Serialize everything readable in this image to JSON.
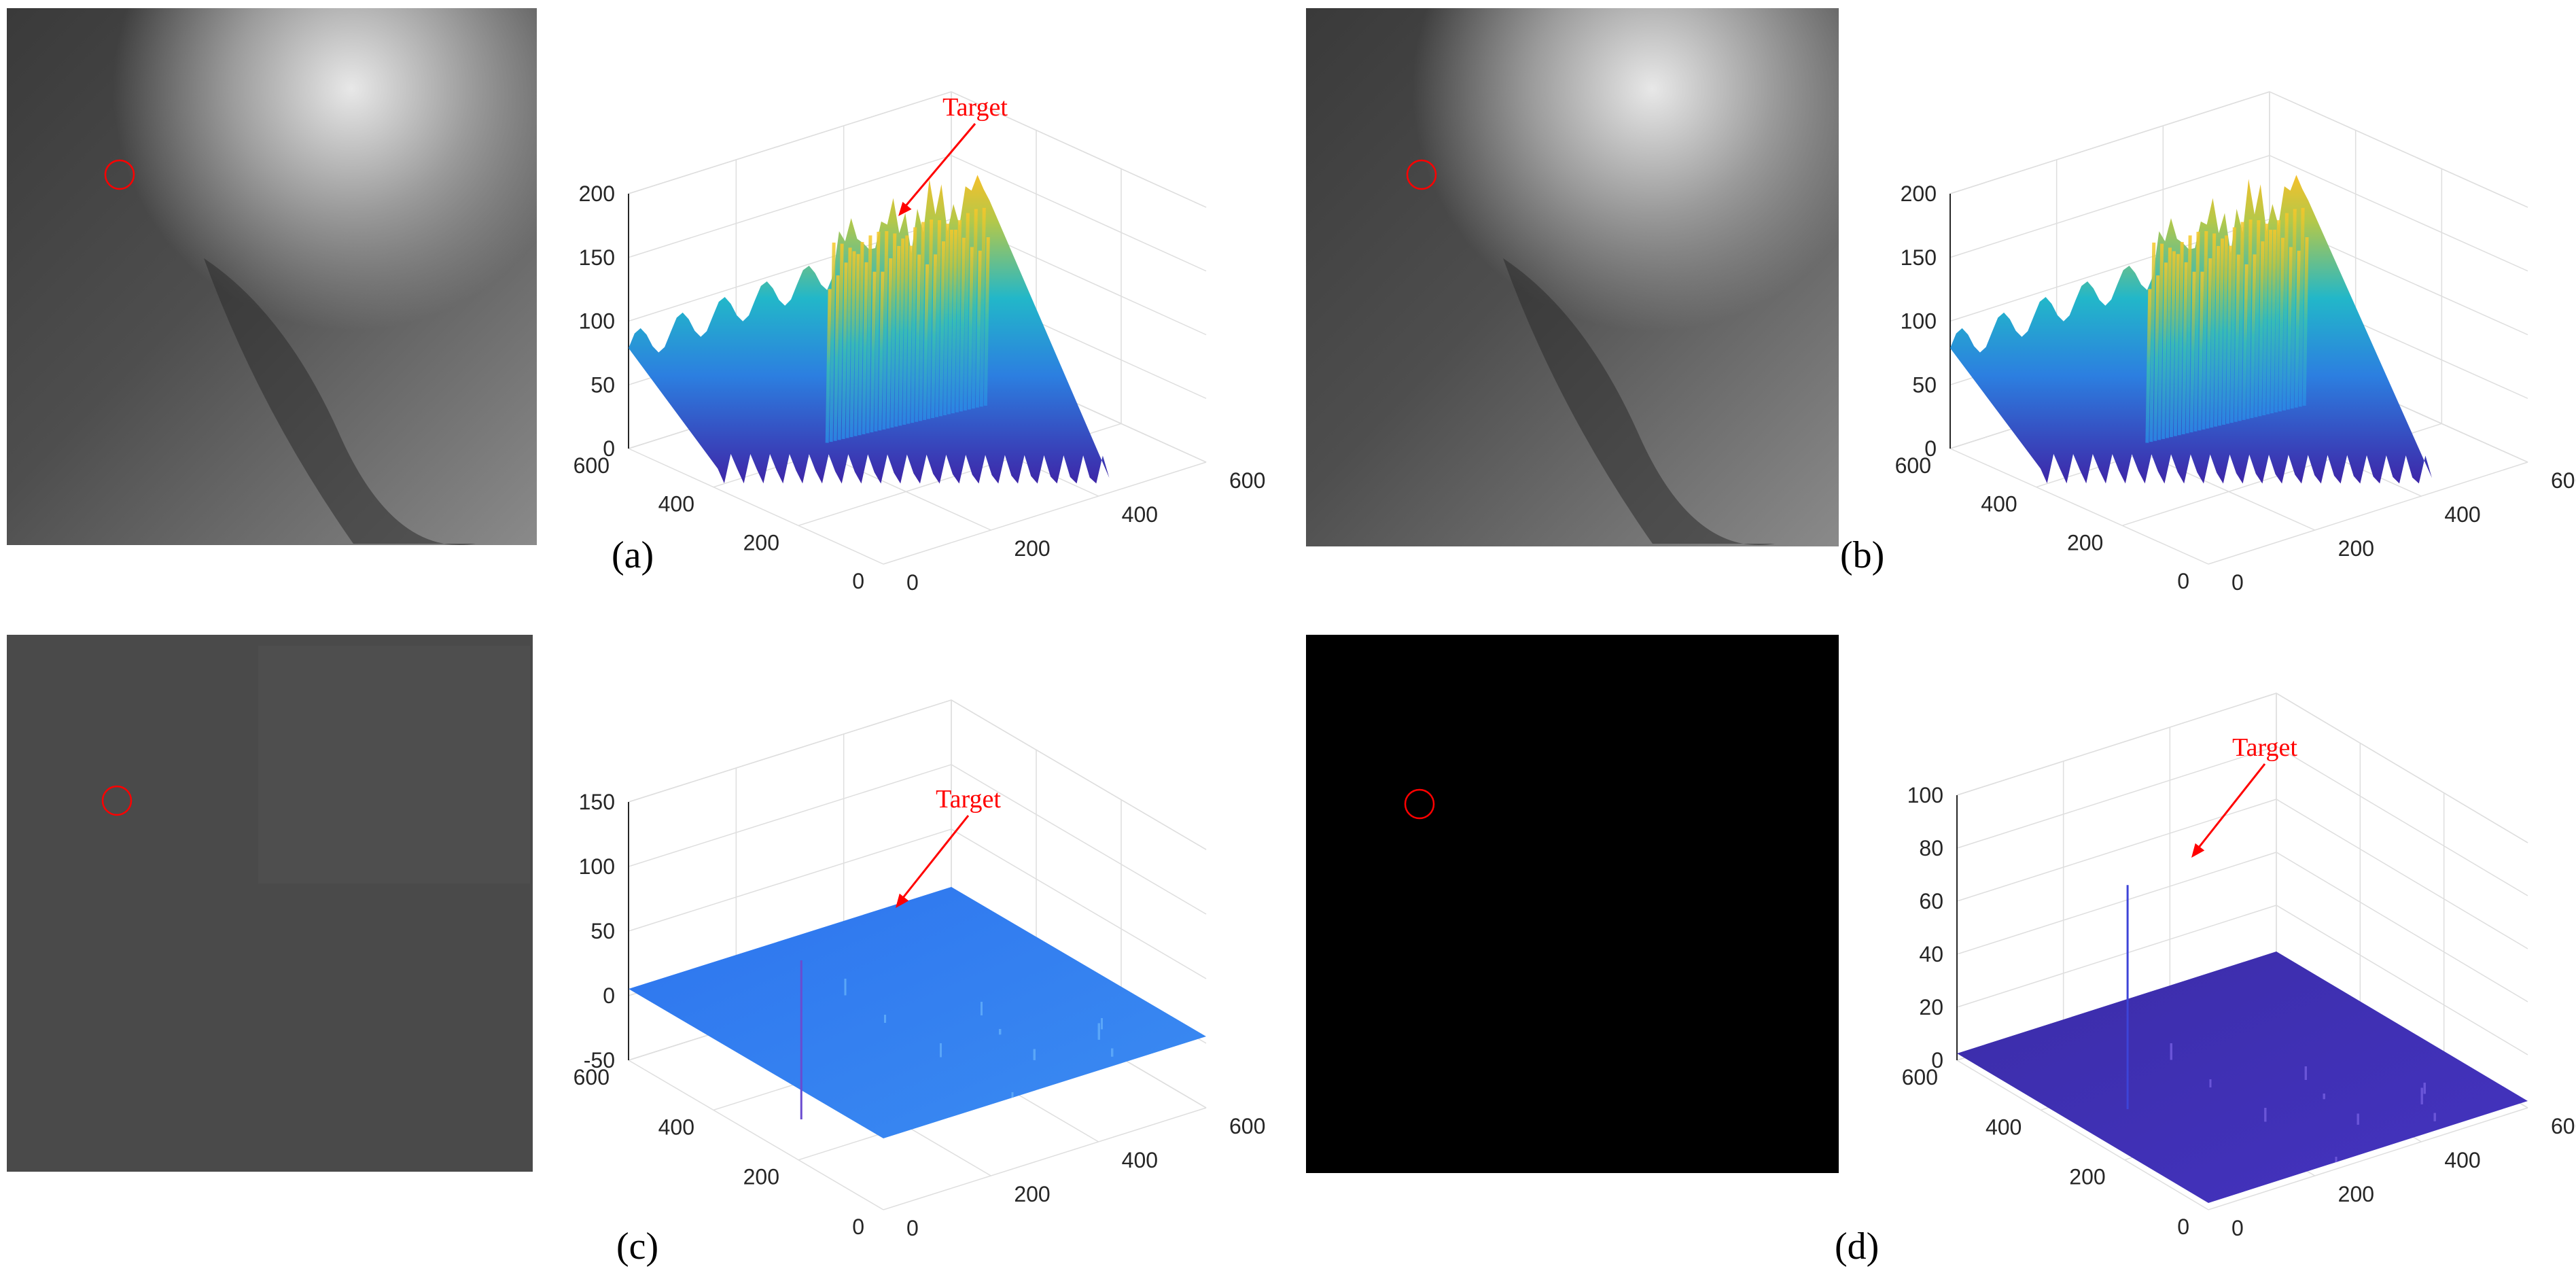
{
  "figure": {
    "annotation_text": "Target",
    "colors": {
      "annotation": "#ff0000",
      "grid": "#dedede",
      "axis": "#262626",
      "surface_low": "#3e26a8",
      "surface_mid": "#1fa4d6",
      "surface_high": "#f5c02a"
    }
  },
  "chart_data": [
    {
      "panel": "a",
      "type": "surface3d",
      "label": "(a)",
      "image": "grayscale infrared scene with a red circle marking the target",
      "axes": {
        "x": {
          "range": [
            0,
            600
          ],
          "ticks": [
            "0",
            "200",
            "400",
            "600"
          ]
        },
        "y": {
          "range": [
            0,
            600
          ],
          "ticks": [
            "0",
            "200",
            "400",
            "600"
          ]
        },
        "z": {
          "range": [
            0,
            200
          ],
          "ticks": [
            "0",
            "50",
            "100",
            "150",
            "200"
          ]
        }
      },
      "annotation": "Target",
      "grid": true
    },
    {
      "panel": "b",
      "type": "surface3d",
      "label": "(b)",
      "image": "grayscale infrared scene with a red circle marking the target",
      "axes": {
        "x": {
          "range": [
            0,
            600
          ],
          "ticks": [
            "0",
            "200",
            "400",
            "600"
          ]
        },
        "y": {
          "range": [
            0,
            600
          ],
          "ticks": [
            "0",
            "200",
            "400",
            "600"
          ]
        },
        "z": {
          "range": [
            0,
            200
          ],
          "ticks": [
            "0",
            "50",
            "100",
            "150",
            "200"
          ]
        }
      },
      "grid": true
    },
    {
      "panel": "c",
      "type": "surface3d",
      "label": "(c)",
      "image": "flat gray residual image with a red circle marking the target",
      "axes": {
        "x": {
          "range": [
            0,
            600
          ],
          "ticks": [
            "0",
            "200",
            "400",
            "600"
          ]
        },
        "y": {
          "range": [
            0,
            600
          ],
          "ticks": [
            "0",
            "200",
            "400",
            "600"
          ]
        },
        "z": {
          "range": [
            -50,
            150
          ],
          "ticks": [
            "-50",
            "0",
            "50",
            "100",
            "150"
          ]
        }
      },
      "annotation": "Target",
      "peak_value": 60,
      "grid": true
    },
    {
      "panel": "d",
      "type": "surface3d",
      "label": "(d)",
      "image": "near-black target map with a red circle marking the target",
      "axes": {
        "x": {
          "range": [
            0,
            600
          ],
          "ticks": [
            "0",
            "200",
            "400",
            "600"
          ]
        },
        "y": {
          "range": [
            0,
            600
          ],
          "ticks": [
            "0",
            "200",
            "400",
            "600"
          ]
        },
        "z": {
          "range": [
            0,
            100
          ],
          "ticks": [
            "0",
            "20",
            "40",
            "60",
            "80",
            "100"
          ]
        }
      },
      "annotation": "Target",
      "peak_value": 82,
      "grid": true
    }
  ]
}
